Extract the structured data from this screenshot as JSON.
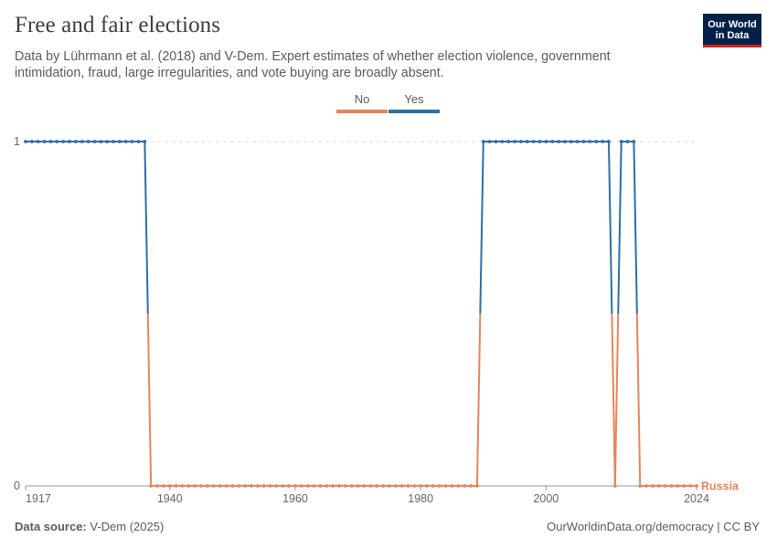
{
  "header": {
    "title": "Free and fair elections",
    "subtitle": "Data by Lührmann et al. (2018) and V-Dem. Expert estimates of whether election violence, government intimidation, fraud, large irregularities, and vote buying are broadly absent."
  },
  "logo": {
    "line1": "Our World",
    "line2": "in Data",
    "bg_color": "#002147",
    "accent_color": "#ce261e"
  },
  "footer": {
    "source_label": "Data source:",
    "source_value": "V-Dem (2025)",
    "right": "OurWorldinData.org/democracy | CC BY"
  },
  "chart_data": {
    "type": "line",
    "title": "Free and fair elections",
    "legend": [
      {
        "name": "No",
        "color": "#e5855c"
      },
      {
        "name": "Yes",
        "color": "#2e6fa3"
      }
    ],
    "legend_position": "top-center",
    "y_ticks": [
      "0",
      "1"
    ],
    "x_ticks": [
      "1917",
      "1940",
      "1960",
      "1980",
      "2000",
      "2024"
    ],
    "x_tick_values": [
      1917,
      1940,
      1960,
      1980,
      2000,
      2024
    ],
    "xlim": [
      1917,
      2024
    ],
    "ylim": [
      0,
      1
    ],
    "series": [
      {
        "name": "Russia",
        "color_yes": "#2e6fa3",
        "color_no": "#e5855c",
        "x": [
          1917,
          1918,
          1919,
          1920,
          1921,
          1922,
          1923,
          1924,
          1925,
          1926,
          1927,
          1928,
          1929,
          1930,
          1931,
          1932,
          1933,
          1934,
          1935,
          1936,
          1937,
          1938,
          1939,
          1940,
          1941,
          1942,
          1943,
          1944,
          1945,
          1946,
          1947,
          1948,
          1949,
          1950,
          1951,
          1952,
          1953,
          1954,
          1955,
          1956,
          1957,
          1958,
          1959,
          1960,
          1961,
          1962,
          1963,
          1964,
          1965,
          1966,
          1967,
          1968,
          1969,
          1970,
          1971,
          1972,
          1973,
          1974,
          1975,
          1976,
          1977,
          1978,
          1979,
          1980,
          1981,
          1982,
          1983,
          1984,
          1985,
          1986,
          1987,
          1988,
          1989,
          1990,
          1991,
          1992,
          1993,
          1994,
          1995,
          1996,
          1997,
          1998,
          1999,
          2000,
          2001,
          2002,
          2003,
          2004,
          2005,
          2006,
          2007,
          2008,
          2009,
          2010,
          2011,
          2012,
          2013,
          2014,
          2015,
          2016,
          2017,
          2018,
          2019,
          2020,
          2021,
          2022,
          2023,
          2024
        ],
        "y": [
          1,
          1,
          1,
          1,
          1,
          1,
          1,
          1,
          1,
          1,
          1,
          1,
          1,
          1,
          1,
          1,
          1,
          1,
          1,
          1,
          0,
          0,
          0,
          0,
          0,
          0,
          0,
          0,
          0,
          0,
          0,
          0,
          0,
          0,
          0,
          0,
          0,
          0,
          0,
          0,
          0,
          0,
          0,
          0,
          0,
          0,
          0,
          0,
          0,
          0,
          0,
          0,
          0,
          0,
          0,
          0,
          0,
          0,
          0,
          0,
          0,
          0,
          0,
          0,
          0,
          0,
          0,
          0,
          0,
          0,
          0,
          0,
          0,
          1,
          1,
          1,
          1,
          1,
          1,
          1,
          1,
          1,
          1,
          1,
          1,
          1,
          1,
          1,
          1,
          1,
          1,
          1,
          1,
          1,
          0,
          1,
          1,
          1,
          0,
          0,
          0,
          0,
          0,
          0,
          0,
          0,
          0,
          0
        ],
        "end_label": "Russia"
      }
    ],
    "grid": "horizontal dashed"
  }
}
